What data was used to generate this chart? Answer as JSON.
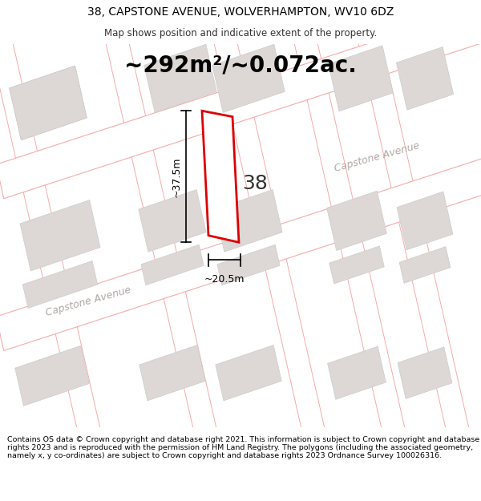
{
  "title_line1": "38, CAPSTONE AVENUE, WOLVERHAMPTON, WV10 6DZ",
  "title_line2": "Map shows position and indicative extent of the property.",
  "area_text": "~292m²/~0.072ac.",
  "number_label": "38",
  "width_label": "~20.5m",
  "height_label": "~37.5m",
  "street_label1": "Capstone Avenue",
  "street_label2": "Capstone Avenue",
  "footer_text": "Contains OS data © Crown copyright and database right 2021. This information is subject to Crown copyright and database rights 2023 and is reproduced with the permission of HM Land Registry. The polygons (including the associated geometry, namely x, y co-ordinates) are subject to Crown copyright and database rights 2023 Ordnance Survey 100026316.",
  "bg_color": "#ffffff",
  "map_bg": "#ffffff",
  "road_color": "#ffffff",
  "building_color": "#ddd8d5",
  "plot_fill": "#ffffff",
  "plot_edge_color": "#dd0000",
  "road_line_color": "#f5aaaa",
  "dim_line_color": "#000000",
  "street_label_color": "#b0a8a5",
  "title_fontsize": 10,
  "subtitle_fontsize": 8.5,
  "area_fontsize": 20,
  "num_fontsize": 18,
  "street_fontsize": 9,
  "dim_fontsize": 9,
  "footer_fontsize": 6.8
}
